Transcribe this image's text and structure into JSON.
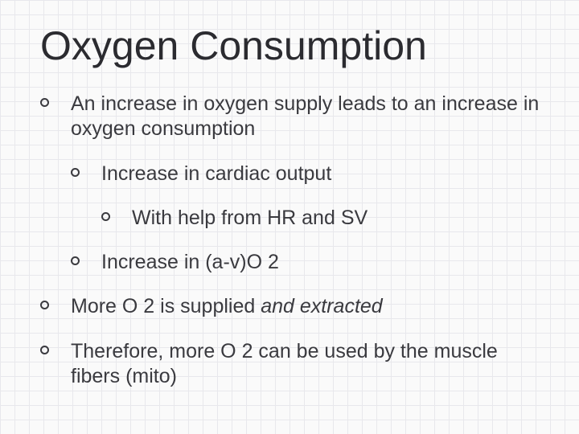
{
  "slide": {
    "title": "Oxygen Consumption",
    "background": "#fafafa",
    "grid_color": "#e8e8ec",
    "text_color": "#3a3a3f",
    "title_color": "#2b2b30",
    "title_fontsize": 50,
    "body_fontsize": 25,
    "bullet_style": "hollow-circle",
    "bullet_color": "#3a3a3f",
    "bullets": [
      {
        "text": "An increase in oxygen supply leads to an increase in oxygen consumption",
        "children": [
          {
            "text": "Increase in cardiac output",
            "children": [
              {
                "text": "With help from HR and SV"
              }
            ]
          },
          {
            "text": "Increase in (a-v)O 2"
          }
        ]
      },
      {
        "text_prefix": "More O 2 is supplied ",
        "text_italic": "and extracted"
      },
      {
        "text": "Therefore, more O 2 can be used by the muscle fibers (mito)"
      }
    ]
  }
}
